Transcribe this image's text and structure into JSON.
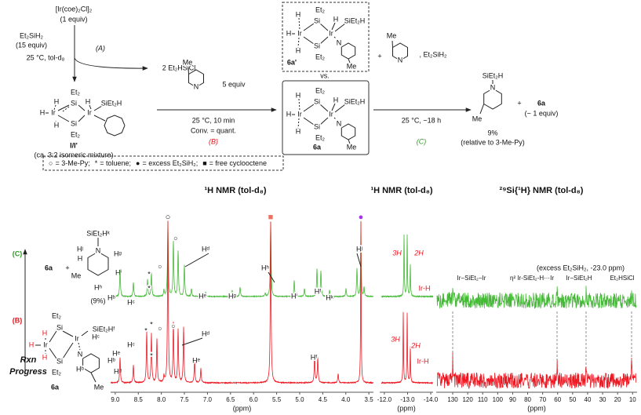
{
  "scheme": {
    "precursor": "[Ir(coe)₂Cl]₂",
    "precursor_amount": "(1 equiv)",
    "silane": "Et₂SiH₂",
    "silane_amount": "(15 equiv)",
    "step_a": {
      "label": "(A)",
      "conditions": "25 °C, tol-d₈",
      "byproduct": "2 Et₂HSiCl"
    },
    "intermediate": {
      "atoms": [
        "Et₂",
        "Si",
        "H",
        "H",
        "Ir",
        "H",
        "H",
        "Ir",
        "SiEt₂H",
        "Si",
        "Et₂"
      ],
      "label": "I/I'",
      "note": "(ca. 3:2 isomeric mixture)"
    },
    "step_b": {
      "reagent_atoms": [
        "Me",
        "N"
      ],
      "amount": "5 equiv",
      "conditions": "25 °C, 10 min",
      "conversion": "Conv. = quant.",
      "label": "(B)"
    },
    "alternative": {
      "atoms": [
        "H",
        "Et₂",
        "Si",
        "H",
        "SiEt₂H",
        "H",
        "Ir",
        "Ir",
        "N",
        "H",
        "Si",
        "Et₂",
        "Me"
      ],
      "label": "6a'"
    },
    "versus": "vs.",
    "complex": {
      "atoms": [
        "H",
        "Et₂",
        "Si",
        "H",
        "SiEt₂H",
        "H",
        "Ir",
        "Ir",
        "N",
        "H",
        "Si",
        "Et₂",
        "Me"
      ],
      "label": "6a"
    },
    "step_c": {
      "plus": "+",
      "reagent_atoms": [
        "Me",
        "N"
      ],
      "silane": ", Et₂SiH₂",
      "conditions": "25 °C, ~18 h",
      "label": "(C)"
    },
    "product": {
      "atoms": [
        "SiEt₂H",
        "N",
        "Me"
      ],
      "yield": "9%",
      "yield_note": "(relative to 3-Me-Py)",
      "plus": "+",
      "coproduct": "6a",
      "coproduct_amount": "(~ 1 equiv)"
    },
    "legend": [
      {
        "symbol": "○",
        "text": "= 3-Me-Py;"
      },
      {
        "symbol": "*",
        "text": "= toluene;"
      },
      {
        "symbol": "●",
        "text": "= excess Et₂SiH₂;"
      },
      {
        "symbol": "■",
        "text": "= free cyclooctene"
      }
    ]
  },
  "panels": {
    "progress_label": [
      "Rxn",
      "Progress"
    ],
    "c": {
      "label": "(C)",
      "compound": "6a",
      "plus": "+",
      "atoms": [
        "SiEt₂Hᵏ",
        "N",
        "Hʲ",
        "H",
        "Hᵍ",
        "Hⁱ",
        "Me",
        "Hʰ"
      ],
      "yield": "(9%)"
    },
    "b": {
      "label": "(B)",
      "atoms": [
        "Et₂",
        "Si",
        "H",
        "H",
        "Ir",
        "H",
        "Ir",
        "SiEt₂Hᶠ",
        "Si",
        "Et₂",
        "Hᶜ",
        "Hᵉ",
        "N",
        "Hᵇ",
        "Hᵈ",
        "Me"
      ],
      "compound": "6a"
    }
  },
  "spectra": {
    "h1_main": {
      "title": "¹H NMR (tol-d₈)",
      "xlabel": "(ppm)",
      "xlim": [
        9.1,
        3.4
      ],
      "xticks": [
        {
          "value": 9,
          "label": "9.0"
        },
        8.5,
        {
          "value": 8,
          "label": "8.0"
        },
        7.5,
        {
          "value": 7,
          "label": "7.0"
        },
        6.5,
        {
          "value": 6,
          "label": "6.0"
        },
        5.5,
        {
          "value": 5,
          "label": "5.0"
        },
        4.5,
        {
          "value": 4,
          "label": "4.0"
        },
        3.5
      ],
      "markers": [
        "○",
        "■",
        "●"
      ],
      "trace_c_labels": [
        "Hᵇ",
        "Hᶜ",
        "*",
        "*",
        "○",
        "○",
        "Hᵈ",
        "Hᵉ",
        "Hᵍ",
        "Hʰ",
        "Hⁱ",
        "Hᶠ",
        "Hᵏ",
        "Hʲ"
      ],
      "trace_b_labels": [
        "Hᵇ",
        "Hᶜ",
        "*",
        "*",
        "*",
        "○",
        "○",
        "Hᵈ",
        "Hᵉ",
        "Hᶠ"
      ]
    },
    "h1_hydride": {
      "title": "¹H NMR (tol-d₈)",
      "xlabel": "(ppm)",
      "xlim": [
        -11.8,
        -14.1
      ],
      "xticks": [
        {
          "value": -12,
          "label": "-12.0"
        },
        {
          "value": -13,
          "label": "-13.0"
        },
        {
          "value": -14,
          "label": "-14.0"
        }
      ],
      "trace_c_labels": [
        "3H",
        "2H",
        "Ir-H"
      ],
      "trace_b_labels": [
        "3H",
        "2H",
        "Ir-H"
      ]
    },
    "si29": {
      "title": "²⁹Si{¹H} NMR (tol-d₈)",
      "xlabel": "(ppm)",
      "xlim": [
        141,
        7
      ],
      "xticks": [
        130,
        120,
        110,
        100,
        90,
        80,
        70,
        60,
        50,
        40,
        30,
        20,
        10
      ],
      "note": "(excess Et₂SiH₂, -23.0 ppm)",
      "assignments": [
        "Ir−SiEt₂−Ir",
        "η² Ir-SiEt₂-H···Ir",
        "Ir−SiEt₂H",
        "Et₂HSiCl"
      ]
    }
  }
}
